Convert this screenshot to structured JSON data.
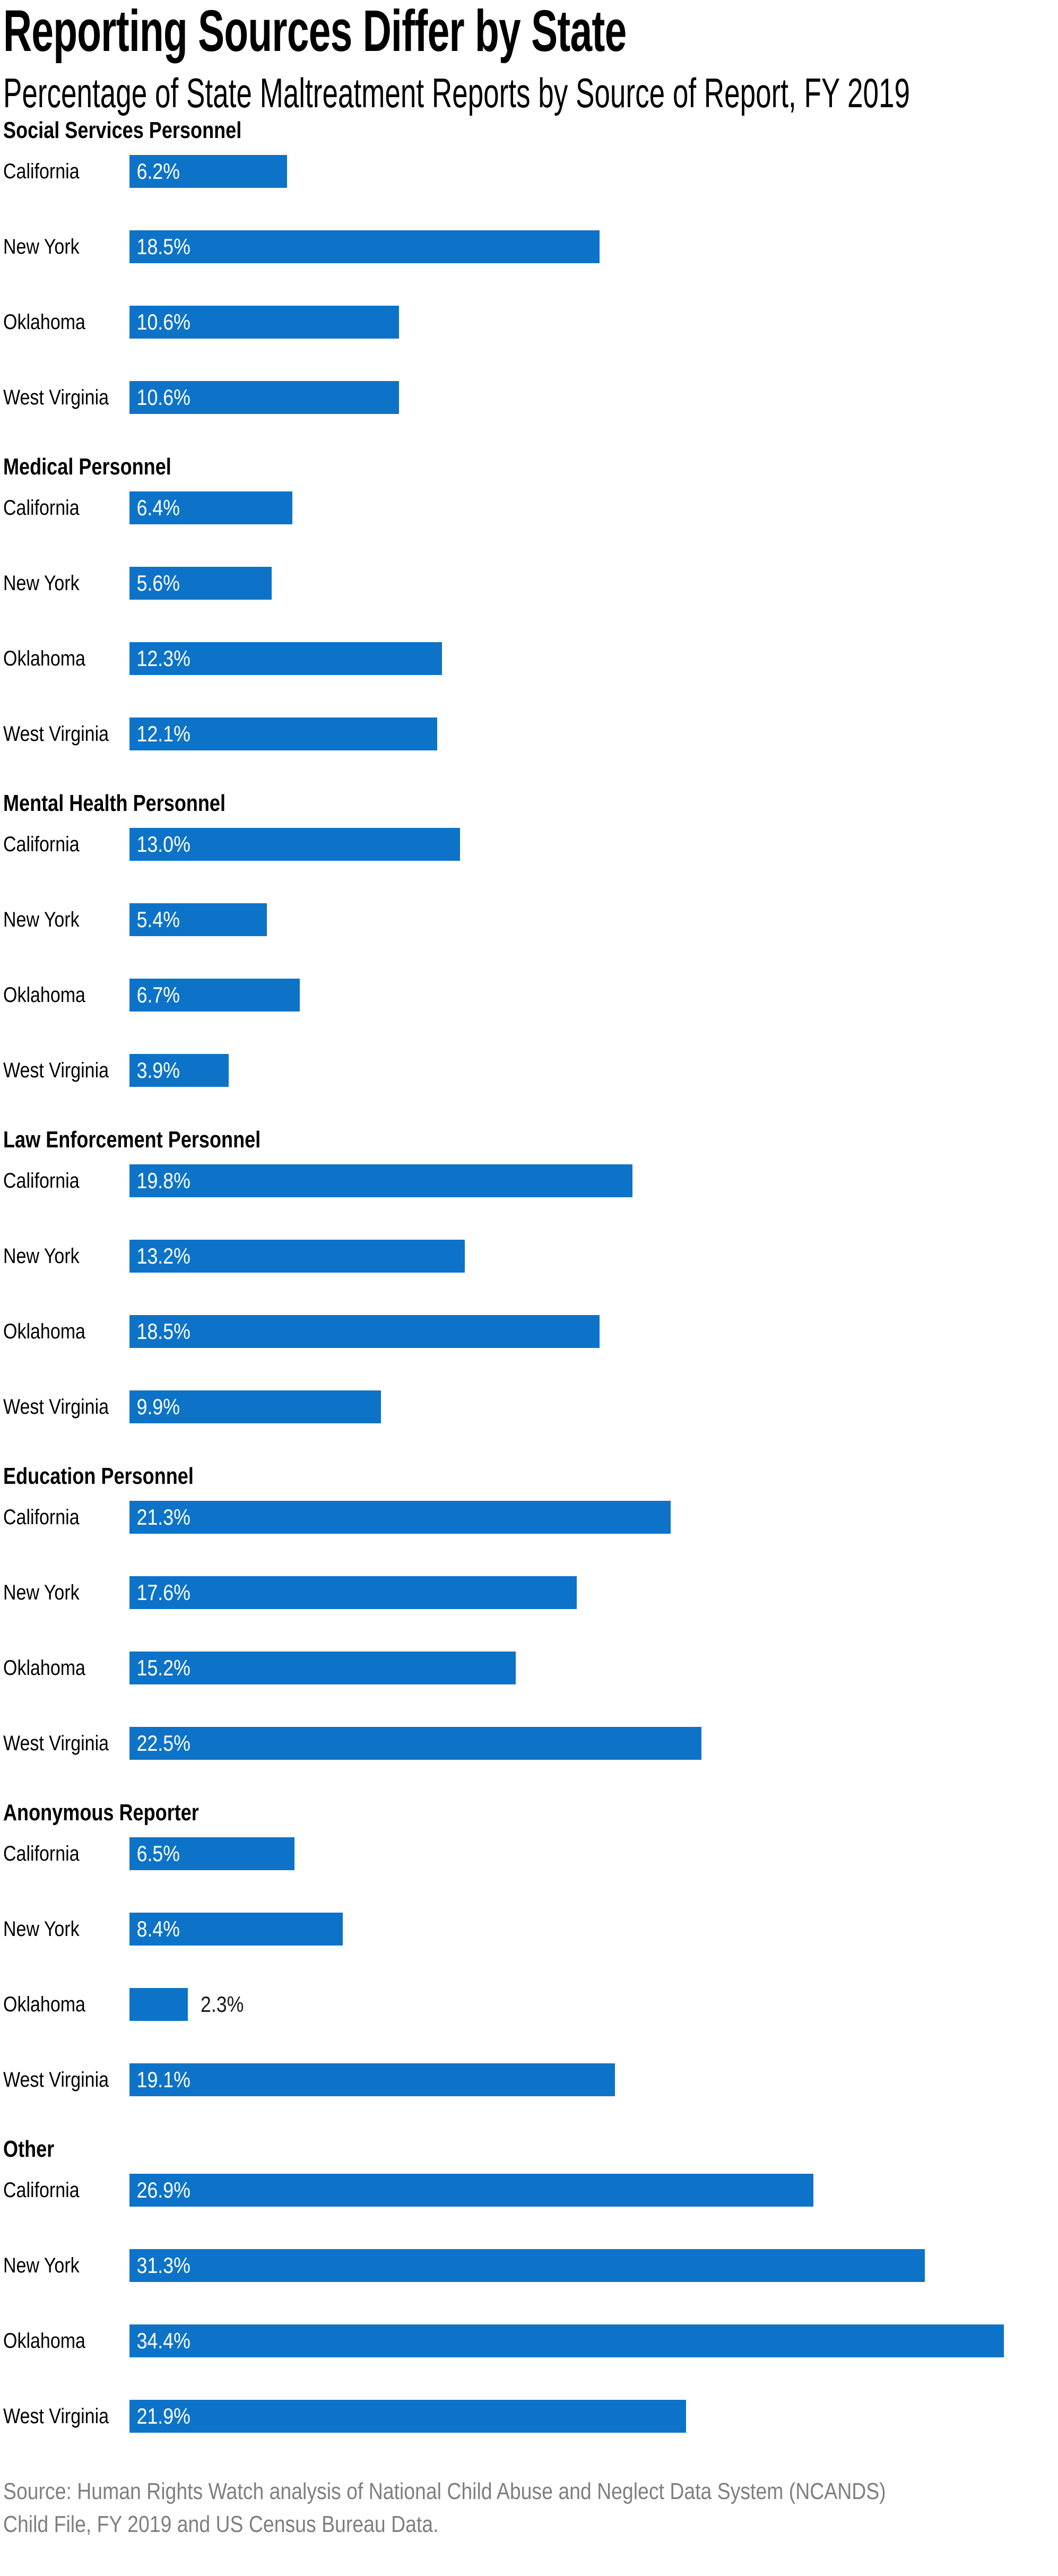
{
  "title": "Reporting Sources Differ by State",
  "subtitle": "Percentage of State Maltreatment Reports by Source of Report, FY 2019",
  "source": {
    "line1": "Source: Human Rights Watch analysis of National Child Abuse and Neglect Data System (NCANDS)",
    "line2": "Child File, FY 2019 and US Census Bureau Data."
  },
  "colors": {
    "bar": "#0d73c8",
    "value_inside": "#ffffff",
    "value_outside": "#1a1a1a",
    "text": "#000000",
    "source_text": "#7f7f7f"
  },
  "chart_data": {
    "type": "bar",
    "orientation": "horizontal",
    "unit": "%",
    "grid": false,
    "legend": false,
    "x_range": [
      0,
      36.5
    ],
    "value_labels_inside_bars": true,
    "categories": [
      "California",
      "New York",
      "Oklahoma",
      "West Virginia"
    ],
    "series": [
      {
        "name": "Social Services Personnel",
        "values": [
          6.2,
          18.5,
          10.6,
          10.6
        ],
        "labels": [
          "6.2%",
          "18.5%",
          "10.6%",
          "10.6%"
        ]
      },
      {
        "name": "Medical Personnel",
        "values": [
          6.4,
          5.6,
          12.3,
          12.1
        ],
        "labels": [
          "6.4%",
          "5.6%",
          "12.3%",
          "12.1%"
        ]
      },
      {
        "name": "Mental Health Personnel",
        "values": [
          13.0,
          5.4,
          6.7,
          3.9
        ],
        "labels": [
          "13.0%",
          "5.4%",
          "6.7%",
          "3.9%"
        ]
      },
      {
        "name": "Law Enforcement Personnel",
        "values": [
          19.8,
          13.2,
          18.5,
          9.9
        ],
        "labels": [
          "19.8%",
          "13.2%",
          "18.5%",
          "9.9%"
        ]
      },
      {
        "name": "Education Personnel",
        "values": [
          21.3,
          17.6,
          15.2,
          22.5
        ],
        "labels": [
          "21.3%",
          "17.6%",
          "15.2%",
          "22.5%"
        ]
      },
      {
        "name": "Anonymous Reporter",
        "values": [
          6.5,
          8.4,
          2.3,
          19.1
        ],
        "labels": [
          "6.5%",
          "8.4%",
          "2.3%",
          "19.1%"
        ]
      },
      {
        "name": "Other",
        "values": [
          26.9,
          31.3,
          34.4,
          21.9
        ],
        "labels": [
          "26.9%",
          "31.3%",
          "34.4%",
          "21.9%"
        ]
      }
    ]
  }
}
